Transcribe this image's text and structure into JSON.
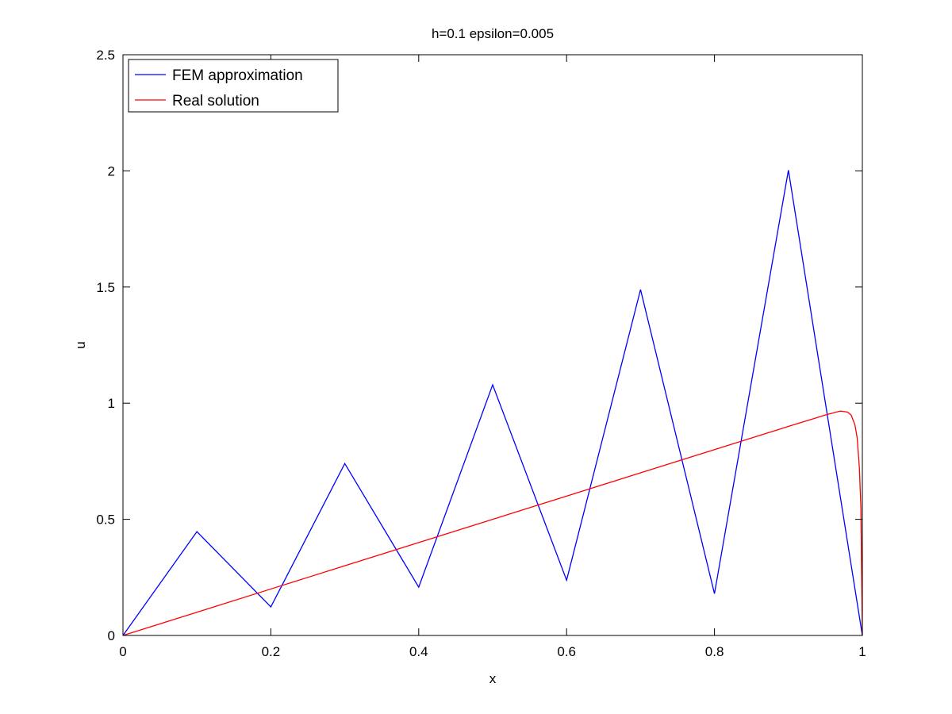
{
  "chart_data": {
    "type": "line",
    "title": "h=0.1 epsilon=0.005",
    "xlabel": "x",
    "ylabel": "u",
    "xlim": [
      0,
      1
    ],
    "ylim": [
      0,
      2.5
    ],
    "xticks": [
      0,
      0.2,
      0.4,
      0.6,
      0.8,
      1
    ],
    "yticks": [
      0,
      0.5,
      1,
      1.5,
      2,
      2.5
    ],
    "xtick_labels": [
      "0",
      "0.2",
      "0.4",
      "0.6",
      "0.8",
      "1"
    ],
    "ytick_labels": [
      "0",
      "0.5",
      "1",
      "1.5",
      "2",
      "2.5"
    ],
    "grid": false,
    "legend_position": "top-left",
    "series": [
      {
        "name": "FEM approximation",
        "color": "#0000ff",
        "x": [
          0,
          0.1,
          0.2,
          0.3,
          0.4,
          0.5,
          0.6,
          0.7,
          0.8,
          0.9,
          1.0
        ],
        "y": [
          0,
          0.447,
          0.123,
          0.74,
          0.208,
          1.079,
          0.238,
          1.489,
          0.18,
          2.003,
          0
        ]
      },
      {
        "name": "Real solution",
        "color": "#ff0000",
        "x": [
          0,
          0.1,
          0.2,
          0.3,
          0.4,
          0.5,
          0.6,
          0.7,
          0.8,
          0.9,
          0.95,
          0.97,
          0.98,
          0.985,
          0.99,
          0.993,
          0.996,
          0.998,
          1.0
        ],
        "y": [
          0,
          0.1,
          0.2,
          0.3,
          0.4,
          0.5,
          0.6,
          0.7,
          0.8,
          0.9,
          0.949,
          0.966,
          0.962,
          0.948,
          0.906,
          0.85,
          0.72,
          0.55,
          0
        ]
      }
    ]
  }
}
